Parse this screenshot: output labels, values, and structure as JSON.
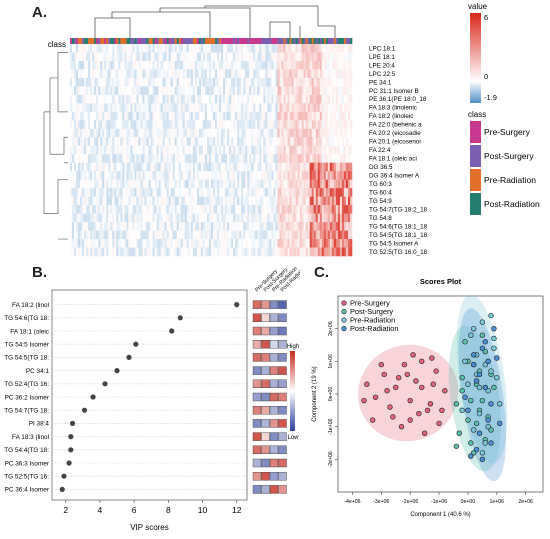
{
  "panels": {
    "a": "A.",
    "b": "B.",
    "c": "C."
  },
  "chart_data": [
    {
      "type": "heatmap",
      "panel": "A.",
      "annotation_row_label": "class",
      "rows": [
        "LPC 18:1",
        "LPE 18:1",
        "LPE 20:4",
        "LPC 22:5",
        "PE 34:1",
        "PC 31:1 Isomer B",
        "PE 36:1(PE 18:0_18",
        "FA 18:3 (linolenic",
        "FA 18:2 (linoleic",
        "FA 22:0 (behenic a",
        "FA 20:2 (eicosadie",
        "FA 20:1 (eicosenoi",
        "FA 22:4",
        "FA 18:1 (oleic aci",
        "DG 36:5",
        "DG 36:4 Isomer A",
        "TG 60:3",
        "TG 60:4",
        "TG 54:9",
        "TG 54:7(TG 18:2_18",
        "TG 54:8",
        "TG 54:6(TG 18:1_18",
        "TG 54:5(TG 18:1_18",
        "TG 54:5 Isomer A",
        "TG 52:5(TG 16:0_18"
      ],
      "color_scale": {
        "title": "value",
        "ticks": [
          "6",
          "0",
          "-1.9"
        ],
        "min": -1.9,
        "max": 6,
        "colors": [
          "#4f8fc6",
          "#ffffff",
          "#d9281c"
        ]
      },
      "class_legend": {
        "title": "class",
        "entries": [
          {
            "name": "Pre-Surgery",
            "color": "#c9388f"
          },
          {
            "name": "Post-Surgery",
            "color": "#7b5fb0"
          },
          {
            "name": "Pre-Radiation",
            "color": "#e2702a"
          },
          {
            "name": "Post-Radiation",
            "color": "#247e70"
          }
        ]
      }
    },
    {
      "type": "scatter",
      "panel": "B.",
      "xlabel": "VIP scores",
      "xlim": [
        1.2,
        12.6
      ],
      "xticks": [
        "2",
        "4",
        "6",
        "8",
        "10",
        "12"
      ],
      "categories": [
        "FA 18:2 (linol",
        "TG 54:6(TG 18:",
        "FA 18:1 (oleic",
        "TG 54:5 Isomer",
        "TG 54:5(TG 18:",
        "PC 34:1",
        "TG 52:4(TG 16:",
        "PC 36:2 Isomer",
        "TG 54:7(TG 18:",
        "PI 38:4",
        "FA 18:3 (linol",
        "TG 54:4(TG 18:",
        "PC 36:3 Isomer",
        "TG 52:5(TG 16:",
        "PC 36:4 Isomer"
      ],
      "values": [
        12.0,
        8.7,
        8.2,
        6.1,
        5.7,
        5.0,
        4.3,
        3.6,
        3.1,
        2.4,
        2.3,
        2.3,
        2.2,
        1.9,
        1.8
      ],
      "group_columns": [
        "Pre-Surgery",
        "Post-Surgery",
        "Pre-Radiation",
        "Post-Radiation"
      ],
      "group_levels": [
        [
          0.85,
          0.75,
          0.2,
          0.1
        ],
        [
          0.9,
          0.6,
          0.3,
          0.2
        ],
        [
          0.8,
          0.7,
          0.25,
          0.15
        ],
        [
          0.7,
          0.9,
          0.4,
          0.3
        ],
        [
          0.85,
          0.8,
          0.3,
          0.2
        ],
        [
          0.2,
          0.3,
          0.8,
          0.9
        ],
        [
          0.75,
          0.85,
          0.3,
          0.25
        ],
        [
          0.25,
          0.2,
          0.85,
          0.8
        ],
        [
          0.8,
          0.7,
          0.3,
          0.2
        ],
        [
          0.2,
          0.3,
          0.75,
          0.9
        ],
        [
          0.9,
          0.6,
          0.2,
          0.3
        ],
        [
          0.85,
          0.75,
          0.3,
          0.2
        ],
        [
          0.3,
          0.2,
          0.8,
          0.85
        ],
        [
          0.75,
          0.9,
          0.25,
          0.3
        ],
        [
          0.2,
          0.3,
          0.9,
          0.75
        ]
      ],
      "color_bar": {
        "high": "High",
        "low": "Low",
        "colors": [
          "#2d3f9a",
          "#ffffff",
          "#c42b1e"
        ]
      }
    },
    {
      "type": "scatter",
      "panel": "C.",
      "title": "Scores Plot",
      "xlabel": "Component 1 (40.6 %)",
      "ylabel": "Component 2 (19 %)",
      "xlim": [
        -4500000,
        2600000
      ],
      "ylim": [
        -3000000,
        3000000
      ],
      "xticks": [
        "-4e+06",
        "-3e+06",
        "-2e+06",
        "-1e+06",
        "0e+00",
        "1e+06",
        "2e+06"
      ],
      "yticks": [
        "-2e+06",
        "-1e+06",
        "0e+00",
        "1e+06",
        "2e+06"
      ],
      "legend_position": "top-left",
      "series": [
        {
          "name": "Pre-Surgery",
          "color": "#e0637a",
          "x": [
            -3500000,
            -3200000,
            -2900000,
            -2700000,
            -2500000,
            -2200000,
            -2000000,
            -1800000,
            -1600000,
            -1400000,
            -1200000,
            -1000000,
            -800000,
            -2600000,
            -2300000,
            -1900000,
            -1500000,
            -1100000,
            -3000000,
            -2100000,
            -1700000,
            -1300000,
            -2400000,
            -900000,
            -3300000,
            -1600000,
            -2800000,
            -2000000,
            -1250000,
            -3600000
          ],
          "y": [
            300000,
            -100000,
            600000,
            -400000,
            200000,
            900000,
            -200000,
            400000,
            1000000,
            -500000,
            300000,
            -900000,
            100000,
            -700000,
            -1000000,
            1200000,
            -1200000,
            700000,
            900000,
            600000,
            -600000,
            -300000,
            500000,
            -500000,
            -800000,
            200000,
            100000,
            -800000,
            1100000,
            -200000
          ]
        },
        {
          "name": "Post-Surgery",
          "color": "#5bbfae",
          "x": [
            -400000,
            -200000,
            0,
            200000,
            400000,
            600000,
            800000,
            -300000,
            100000,
            300000,
            500000,
            -100000,
            700000,
            900000,
            200000,
            400000,
            0,
            600000,
            -200000,
            300000,
            800000,
            100000,
            500000,
            -400000
          ],
          "y": [
            -300000,
            500000,
            -800000,
            900000,
            -500000,
            1300000,
            -1100000,
            -1200000,
            -1500000,
            300000,
            -200000,
            1600000,
            -700000,
            200000,
            -1800000,
            700000,
            1000000,
            -1400000,
            100000,
            -900000,
            600000,
            -200000,
            1800000,
            -1600000
          ]
        },
        {
          "name": "Pre-Radiation",
          "color": "#7ac7d9",
          "x": [
            -100000,
            100000,
            300000,
            500000,
            700000,
            900000,
            1100000,
            200000,
            400000,
            600000,
            800000,
            0,
            300000,
            700000,
            1000000,
            500000,
            200000,
            600000,
            -200000,
            900000,
            400000,
            800000
          ],
          "y": [
            1000000,
            1800000,
            600000,
            2200000,
            100000,
            1400000,
            -300000,
            -1100000,
            -600000,
            -1500000,
            700000,
            300000,
            1200000,
            -1000000,
            500000,
            -1800000,
            2000000,
            900000,
            -500000,
            1700000,
            200000,
            2400000
          ]
        },
        {
          "name": "Post-Radiation",
          "color": "#4a8fd4",
          "x": [
            0,
            200000,
            400000,
            600000,
            800000,
            1000000,
            100000,
            300000,
            500000,
            700000,
            900000,
            -100000,
            400000,
            800000,
            200000,
            600000,
            1100000,
            300000,
            700000,
            500000
          ],
          "y": [
            -500000,
            900000,
            -1200000,
            1600000,
            -300000,
            1100000,
            -1900000,
            400000,
            1400000,
            -800000,
            2000000,
            -100000,
            600000,
            -1500000,
            1200000,
            200000,
            -900000,
            -1700000,
            1000000,
            -2000000
          ]
        }
      ]
    }
  ]
}
